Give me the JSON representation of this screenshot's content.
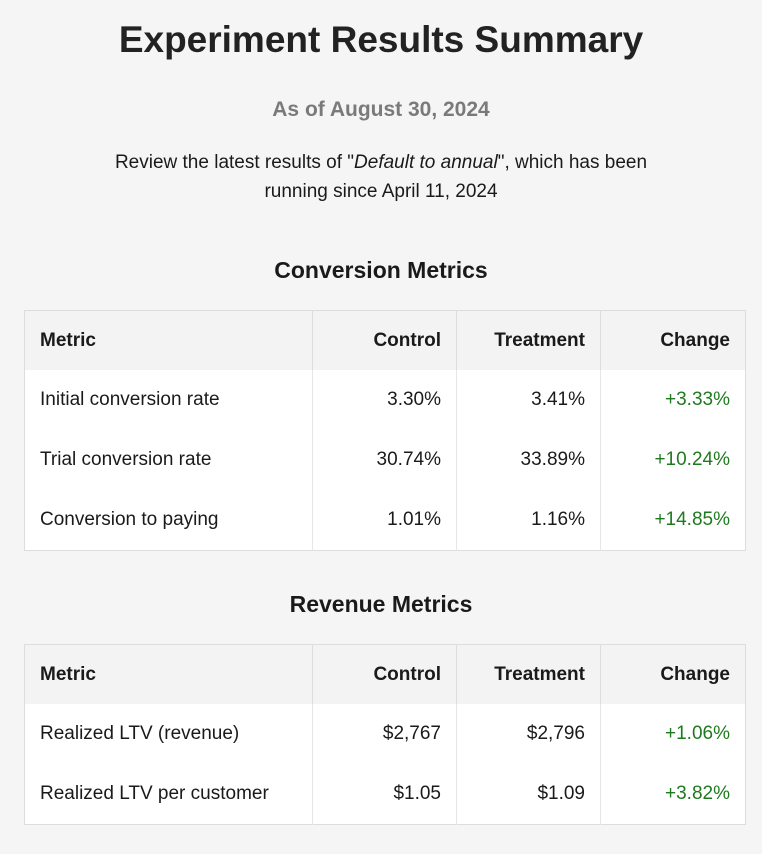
{
  "title": "Experiment Results Summary",
  "as_of": "As of August 30, 2024",
  "intro": {
    "before": "Review the latest results of \"",
    "experiment_name": "Default to annual",
    "after": "\", which has been running since April 11, 2024"
  },
  "conversion": {
    "title": "Conversion Metrics",
    "headers": [
      "Metric",
      "Control",
      "Treatment",
      "Change"
    ],
    "rows": [
      [
        "Initial conversion rate",
        "3.30%",
        "3.41%",
        "+3.33%"
      ],
      [
        "Trial conversion rate",
        "30.74%",
        "33.89%",
        "+10.24%"
      ],
      [
        "Conversion to paying",
        "1.01%",
        "1.16%",
        "+14.85%"
      ]
    ]
  },
  "revenue": {
    "title": "Revenue Metrics",
    "headers": [
      "Metric",
      "Control",
      "Treatment",
      "Change"
    ],
    "rows": [
      [
        "Realized LTV (revenue)",
        "$2,767",
        "$2,796",
        "+1.06%"
      ],
      [
        "Realized LTV per customer",
        "$1.05",
        "$1.09",
        "+3.82%"
      ]
    ]
  },
  "colors": {
    "positive_change": "#1f7a1f",
    "subtitle": "#7a7a7a"
  }
}
